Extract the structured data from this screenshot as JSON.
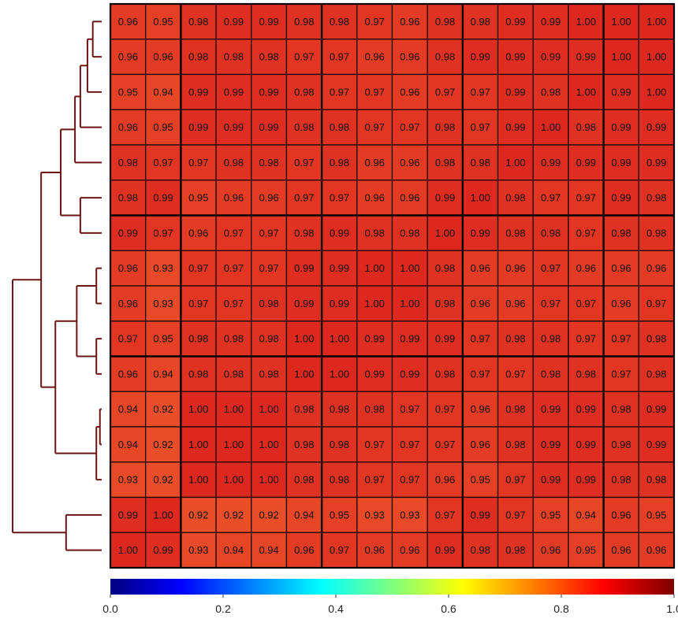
{
  "chart_data": {
    "type": "heatmap",
    "rows": 16,
    "cols": 16,
    "values": [
      [
        0.96,
        0.95,
        0.98,
        0.99,
        0.99,
        0.98,
        0.98,
        0.97,
        0.96,
        0.98,
        0.98,
        0.99,
        0.99,
        1.0,
        1.0,
        1.0
      ],
      [
        0.96,
        0.96,
        0.98,
        0.98,
        0.98,
        0.97,
        0.97,
        0.96,
        0.96,
        0.98,
        0.99,
        0.99,
        0.99,
        0.99,
        1.0,
        1.0
      ],
      [
        0.95,
        0.94,
        0.99,
        0.99,
        0.99,
        0.98,
        0.97,
        0.97,
        0.96,
        0.97,
        0.97,
        0.99,
        0.98,
        1.0,
        0.99,
        1.0
      ],
      [
        0.96,
        0.95,
        0.99,
        0.99,
        0.99,
        0.98,
        0.98,
        0.97,
        0.97,
        0.98,
        0.97,
        0.99,
        1.0,
        0.98,
        0.99,
        0.99
      ],
      [
        0.98,
        0.97,
        0.97,
        0.98,
        0.98,
        0.97,
        0.98,
        0.96,
        0.96,
        0.98,
        0.98,
        1.0,
        0.99,
        0.99,
        0.99,
        0.99
      ],
      [
        0.98,
        0.99,
        0.95,
        0.96,
        0.96,
        0.97,
        0.97,
        0.96,
        0.96,
        0.99,
        1.0,
        0.98,
        0.97,
        0.97,
        0.99,
        0.98
      ],
      [
        0.99,
        0.97,
        0.96,
        0.97,
        0.97,
        0.98,
        0.99,
        0.98,
        0.98,
        1.0,
        0.99,
        0.98,
        0.98,
        0.97,
        0.98,
        0.98
      ],
      [
        0.96,
        0.93,
        0.97,
        0.97,
        0.97,
        0.99,
        0.99,
        1.0,
        1.0,
        0.98,
        0.96,
        0.96,
        0.97,
        0.96,
        0.96,
        0.96
      ],
      [
        0.96,
        0.93,
        0.97,
        0.97,
        0.98,
        0.99,
        0.99,
        1.0,
        1.0,
        0.98,
        0.96,
        0.96,
        0.97,
        0.97,
        0.96,
        0.97
      ],
      [
        0.97,
        0.95,
        0.98,
        0.98,
        0.98,
        1.0,
        1.0,
        0.99,
        0.99,
        0.99,
        0.97,
        0.98,
        0.98,
        0.97,
        0.97,
        0.98
      ],
      [
        0.96,
        0.94,
        0.98,
        0.98,
        0.98,
        1.0,
        1.0,
        0.99,
        0.99,
        0.98,
        0.97,
        0.97,
        0.98,
        0.98,
        0.97,
        0.98
      ],
      [
        0.94,
        0.92,
        1.0,
        1.0,
        1.0,
        0.98,
        0.98,
        0.98,
        0.97,
        0.97,
        0.96,
        0.98,
        0.99,
        0.99,
        0.98,
        0.99
      ],
      [
        0.94,
        0.92,
        1.0,
        1.0,
        1.0,
        0.98,
        0.98,
        0.97,
        0.97,
        0.97,
        0.96,
        0.98,
        0.99,
        0.99,
        0.98,
        0.99
      ],
      [
        0.93,
        0.92,
        1.0,
        1.0,
        1.0,
        0.98,
        0.98,
        0.97,
        0.97,
        0.96,
        0.95,
        0.97,
        0.99,
        0.99,
        0.98,
        0.98
      ],
      [
        0.99,
        1.0,
        0.92,
        0.92,
        0.92,
        0.94,
        0.95,
        0.93,
        0.93,
        0.97,
        0.99,
        0.97,
        0.95,
        0.94,
        0.96,
        0.95
      ],
      [
        1.0,
        0.99,
        0.93,
        0.94,
        0.94,
        0.96,
        0.97,
        0.96,
        0.96,
        0.99,
        0.98,
        0.98,
        0.96,
        0.95,
        0.96,
        0.96
      ]
    ],
    "value_format_decimals": 2,
    "colorbar": {
      "min": 0.0,
      "max": 1.0,
      "ticks": [
        "0.0",
        "0.2",
        "0.4",
        "0.6",
        "0.8",
        "1.0"
      ],
      "colormap": "jet",
      "stops": [
        "#00007f",
        "#0000ff",
        "#007fff",
        "#00ffff",
        "#7fff7f",
        "#ffff00",
        "#ff7f00",
        "#ff0000",
        "#7f0000"
      ]
    },
    "dendrogram": {
      "side": "left",
      "color": "#6b1414",
      "merges": [
        {
          "a": "l0",
          "b": "l1",
          "height": 0.05
        },
        {
          "a": "m0",
          "b": "l2",
          "height": 0.08
        },
        {
          "a": "m1",
          "b": "l3",
          "height": 0.12
        },
        {
          "a": "m2",
          "b": "l4",
          "height": 0.15
        },
        {
          "a": "l5",
          "b": "l6",
          "height": 0.12
        },
        {
          "a": "m3",
          "b": "m4",
          "height": 0.23
        },
        {
          "a": "l7",
          "b": "l8",
          "height": 0.03
        },
        {
          "a": "l9",
          "b": "l10",
          "height": 0.03
        },
        {
          "a": "m6",
          "b": "m7",
          "height": 0.14
        },
        {
          "a": "l11",
          "b": "l12",
          "height": 0.01
        },
        {
          "a": "m9",
          "b": "l13",
          "height": 0.03
        },
        {
          "a": "m8",
          "b": "m10",
          "height": 0.26
        },
        {
          "a": "m5",
          "b": "m11",
          "height": 0.34
        },
        {
          "a": "l14",
          "b": "l15",
          "height": 0.2
        },
        {
          "a": "m12",
          "b": "m13",
          "height": 0.5
        }
      ],
      "max_height": 0.5
    },
    "grid": true,
    "block_boundaries_cols": [
      2,
      6,
      10,
      14
    ],
    "block_boundaries_rows": [
      6,
      10
    ]
  }
}
